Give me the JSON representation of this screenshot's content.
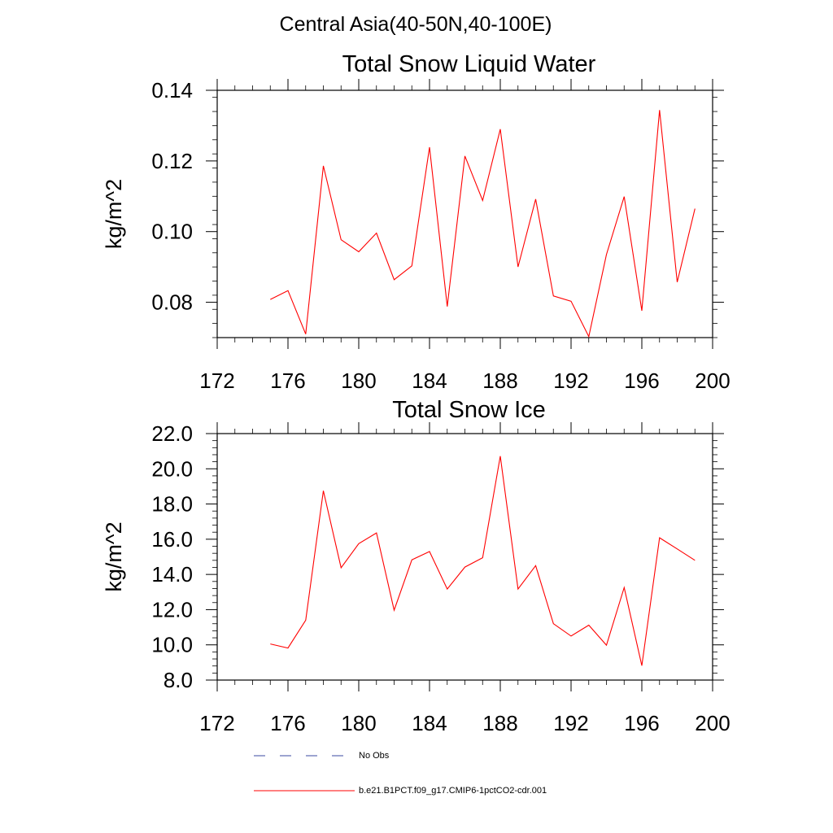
{
  "figure_title": "Central Asia(40-50N,40-100E)",
  "colors": {
    "model_line": "#ff0000",
    "obs_line": "#3b4aa0",
    "axis": "#000000"
  },
  "legend": {
    "items": [
      {
        "label": "No Obs",
        "style": "dashed",
        "color": "#3b4aa0"
      },
      {
        "label": "b.e21.B1PCT.f09_g17.CMIP6-1pctCO2-cdr.001",
        "style": "solid",
        "color": "#ff0000"
      }
    ]
  },
  "chart_data": [
    {
      "type": "line",
      "title": "Total Snow Liquid Water",
      "xlabel": "",
      "ylabel": "kg/m^2",
      "xlim": [
        172,
        200
      ],
      "ylim": [
        0.07,
        0.14
      ],
      "xticks": [
        172,
        176,
        180,
        184,
        188,
        192,
        196,
        200
      ],
      "xtick_labels": [
        "172",
        "176",
        "180",
        "184",
        "188",
        "192",
        "196",
        "200"
      ],
      "yticks": [
        0.08,
        0.1,
        0.12,
        0.14
      ],
      "ytick_labels": [
        "0.08",
        "0.10",
        "0.12",
        "0.14"
      ],
      "grid": false,
      "x": [
        175,
        176,
        177,
        178,
        179,
        180,
        181,
        182,
        183,
        184,
        185,
        186,
        187,
        188,
        189,
        190,
        191,
        192,
        193,
        194,
        195,
        196,
        197,
        198,
        199
      ],
      "series": [
        {
          "color": "#ff0000",
          "values": [
            0.0808,
            0.0833,
            0.071,
            0.1186,
            0.0977,
            0.0943,
            0.0996,
            0.0864,
            0.0903,
            0.1239,
            0.0788,
            0.1214,
            0.1088,
            0.129,
            0.09,
            0.1092,
            0.0818,
            0.0803,
            0.0703,
            0.0935,
            0.1099,
            0.0776,
            0.1344,
            0.0857,
            0.1065
          ]
        }
      ]
    },
    {
      "type": "line",
      "title": "Total Snow Ice",
      "xlabel": "",
      "ylabel": "kg/m^2",
      "xlim": [
        172,
        200
      ],
      "ylim": [
        8.0,
        22.0
      ],
      "xticks": [
        172,
        176,
        180,
        184,
        188,
        192,
        196,
        200
      ],
      "xtick_labels": [
        "172",
        "176",
        "180",
        "184",
        "188",
        "192",
        "196",
        "200"
      ],
      "yticks": [
        8,
        10,
        12,
        14,
        16,
        18,
        20,
        22
      ],
      "ytick_labels": [
        "8.0",
        "10.0",
        "12.0",
        "14.0",
        "16.0",
        "18.0",
        "20.0",
        "22.0"
      ],
      "grid": false,
      "x": [
        175,
        176,
        177,
        178,
        179,
        180,
        181,
        182,
        183,
        184,
        185,
        186,
        187,
        188,
        189,
        190,
        191,
        192,
        193,
        194,
        195,
        196,
        197,
        198,
        199
      ],
      "series": [
        {
          "color": "#ff0000",
          "values": [
            10.05,
            9.82,
            11.4,
            18.75,
            14.38,
            15.75,
            16.36,
            11.97,
            14.83,
            15.3,
            13.17,
            14.42,
            14.95,
            20.72,
            13.17,
            14.5,
            11.2,
            10.5,
            11.12,
            9.98,
            13.26,
            8.82,
            16.08,
            15.45,
            14.8
          ]
        }
      ]
    }
  ]
}
